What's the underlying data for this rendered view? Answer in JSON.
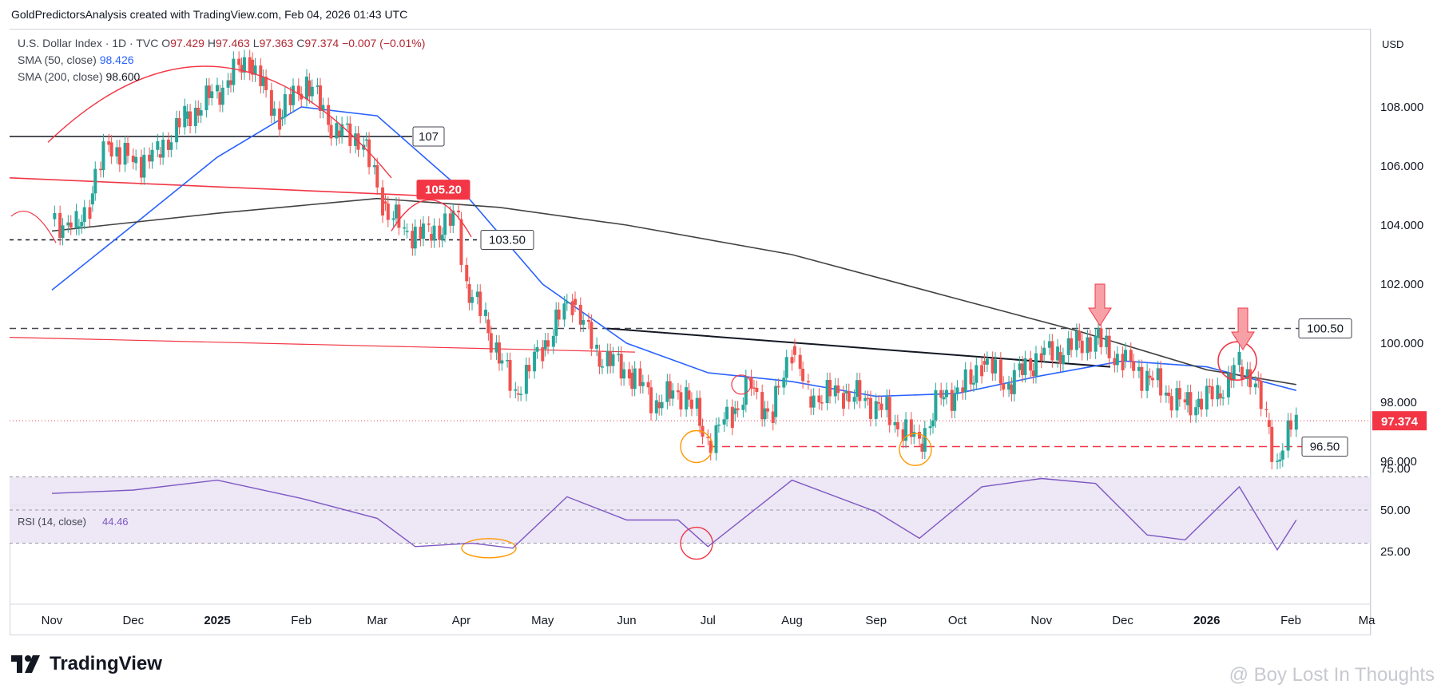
{
  "header": {
    "caption": "GoldPredictorsAnalysis created with TradingView.com, Feb 04, 2026 01:43 UTC"
  },
  "legend": {
    "symbol": "U.S. Dollar Index · 1D · TVC",
    "o_label": "O",
    "o_value": "97.429",
    "h_label": "H",
    "h_value": "97.463",
    "l_label": "L",
    "l_value": "97.363",
    "c_label": "C",
    "c_value": "97.374",
    "change": "−0.007 (−0.01%)",
    "sma50_label": "SMA (50, close)",
    "sma50_value": "98.426",
    "sma200_label": "SMA (200, close)",
    "sma200_value": "98.600"
  },
  "rsi": {
    "label": "RSI (14, close)",
    "value": "44.46",
    "axis_ticks": [
      "75.00",
      "50.00",
      "25.00"
    ]
  },
  "currency": "USD",
  "footer": {
    "brand": "TradingView",
    "watermark": "@ Boy Lost In Thoughts"
  },
  "colors": {
    "up": "#26a69a",
    "down": "#ef5350",
    "sma50": "#2962ff",
    "sma200": "#424242",
    "resistance": "#f23645",
    "rsi": "#7e57c2",
    "rsi_band": "#ede7f6",
    "circle_orange": "#ff9800"
  },
  "chart_data": {
    "type": "line",
    "title": "U.S. Dollar Index",
    "interval": "1D",
    "source": "TVC",
    "ylim": [
      95.2,
      110.3
    ],
    "y_ticks": [
      "108.000",
      "106.000",
      "104.000",
      "102.000",
      "100.000",
      "98.000",
      "96.000"
    ],
    "x_ticks": [
      "Nov",
      "Dec",
      "2025",
      "Feb",
      "Mar",
      "Apr",
      "May",
      "Jun",
      "Jul",
      "Aug",
      "Sep",
      "Oct",
      "Nov",
      "Dec",
      "2026",
      "Feb",
      "Ma"
    ],
    "price_path": [
      {
        "x": "2024-11-01",
        "y": 104.2
      },
      {
        "x": "2024-11-10",
        "y": 103.9
      },
      {
        "x": "2024-11-15",
        "y": 104.7
      },
      {
        "x": "2024-11-22",
        "y": 106.8
      },
      {
        "x": "2024-12-01",
        "y": 106.1
      },
      {
        "x": "2024-12-10",
        "y": 106.4
      },
      {
        "x": "2024-12-20",
        "y": 107.6
      },
      {
        "x": "2025-01-01",
        "y": 108.5
      },
      {
        "x": "2025-01-13",
        "y": 109.6
      },
      {
        "x": "2025-01-24",
        "y": 107.6
      },
      {
        "x": "2025-02-03",
        "y": 108.9
      },
      {
        "x": "2025-02-14",
        "y": 107.2
      },
      {
        "x": "2025-02-24",
        "y": 106.9
      },
      {
        "x": "2025-03-03",
        "y": 104.8
      },
      {
        "x": "2025-03-11",
        "y": 103.8
      },
      {
        "x": "2025-03-20",
        "y": 103.7
      },
      {
        "x": "2025-03-31",
        "y": 104.2
      },
      {
        "x": "2025-04-03",
        "y": 102.0
      },
      {
        "x": "2025-04-10",
        "y": 100.8
      },
      {
        "x": "2025-04-21",
        "y": 98.3
      },
      {
        "x": "2025-05-01",
        "y": 99.8
      },
      {
        "x": "2025-05-12",
        "y": 101.5
      },
      {
        "x": "2025-05-21",
        "y": 99.7
      },
      {
        "x": "2025-06-02",
        "y": 99.0
      },
      {
        "x": "2025-06-12",
        "y": 98.0
      },
      {
        "x": "2025-06-23",
        "y": 98.4
      },
      {
        "x": "2025-07-01",
        "y": 96.7
      },
      {
        "x": "2025-07-10",
        "y": 97.6
      },
      {
        "x": "2025-07-17",
        "y": 98.5
      },
      {
        "x": "2025-07-25",
        "y": 97.5
      },
      {
        "x": "2025-08-01",
        "y": 99.9
      },
      {
        "x": "2025-08-07",
        "y": 98.2
      },
      {
        "x": "2025-08-20",
        "y": 98.3
      },
      {
        "x": "2025-09-01",
        "y": 98.0
      },
      {
        "x": "2025-09-17",
        "y": 96.6
      },
      {
        "x": "2025-09-25",
        "y": 98.1
      },
      {
        "x": "2025-10-06",
        "y": 98.6
      },
      {
        "x": "2025-10-10",
        "y": 99.4
      },
      {
        "x": "2025-10-20",
        "y": 98.6
      },
      {
        "x": "2025-11-01",
        "y": 99.6
      },
      {
        "x": "2025-11-07",
        "y": 99.7
      },
      {
        "x": "2025-11-21",
        "y": 100.2
      },
      {
        "x": "2025-12-01",
        "y": 99.4
      },
      {
        "x": "2025-12-10",
        "y": 98.9
      },
      {
        "x": "2025-12-24",
        "y": 97.9
      },
      {
        "x": "2026-01-05",
        "y": 98.3
      },
      {
        "x": "2026-01-13",
        "y": 99.2
      },
      {
        "x": "2026-01-19",
        "y": 98.8
      },
      {
        "x": "2026-01-23",
        "y": 97.4
      },
      {
        "x": "2026-01-27",
        "y": 96.0
      },
      {
        "x": "2026-02-03",
        "y": 97.4
      }
    ],
    "series": [
      {
        "name": "SMA (50, close)",
        "color": "#2962ff",
        "values": [
          {
            "x": "2024-11-01",
            "y": 101.8
          },
          {
            "x": "2024-12-01",
            "y": 104.0
          },
          {
            "x": "2025-01-01",
            "y": 106.3
          },
          {
            "x": "2025-02-01",
            "y": 108.0
          },
          {
            "x": "2025-03-01",
            "y": 107.7
          },
          {
            "x": "2025-04-01",
            "y": 105.2
          },
          {
            "x": "2025-05-01",
            "y": 102.0
          },
          {
            "x": "2025-06-01",
            "y": 100.0
          },
          {
            "x": "2025-07-01",
            "y": 99.0
          },
          {
            "x": "2025-08-01",
            "y": 98.7
          },
          {
            "x": "2025-09-01",
            "y": 98.2
          },
          {
            "x": "2025-10-01",
            "y": 98.3
          },
          {
            "x": "2025-11-01",
            "y": 98.9
          },
          {
            "x": "2025-12-01",
            "y": 99.4
          },
          {
            "x": "2026-01-01",
            "y": 99.2
          },
          {
            "x": "2026-02-03",
            "y": 98.4
          }
        ]
      },
      {
        "name": "SMA (200, close)",
        "color": "#424242",
        "values": [
          {
            "x": "2024-11-01",
            "y": 103.8
          },
          {
            "x": "2025-01-01",
            "y": 104.4
          },
          {
            "x": "2025-03-01",
            "y": 104.9
          },
          {
            "x": "2025-04-15",
            "y": 104.6
          },
          {
            "x": "2025-06-01",
            "y": 104.0
          },
          {
            "x": "2025-08-01",
            "y": 103.0
          },
          {
            "x": "2025-10-01",
            "y": 101.5
          },
          {
            "x": "2025-11-15",
            "y": 100.4
          },
          {
            "x": "2026-01-01",
            "y": 99.1
          },
          {
            "x": "2026-02-03",
            "y": 98.6
          }
        ]
      }
    ],
    "levels": [
      {
        "label": "107",
        "y": 107.0
      },
      {
        "label": "105.20",
        "y": 105.2
      },
      {
        "label": "103.50",
        "y": 103.5
      },
      {
        "label": "100.50",
        "y": 100.5
      },
      {
        "label": "96.50",
        "y": 96.5
      }
    ],
    "current_price": "97.374",
    "rsi_values": [
      {
        "x": "2024-11-01",
        "y": 60
      },
      {
        "x": "2024-12-01",
        "y": 62
      },
      {
        "x": "2025-01-01",
        "y": 68
      },
      {
        "x": "2025-02-01",
        "y": 57
      },
      {
        "x": "2025-03-01",
        "y": 45
      },
      {
        "x": "2025-03-15",
        "y": 28
      },
      {
        "x": "2025-04-05",
        "y": 30
      },
      {
        "x": "2025-04-20",
        "y": 27
      },
      {
        "x": "2025-05-10",
        "y": 58
      },
      {
        "x": "2025-06-01",
        "y": 44
      },
      {
        "x": "2025-06-20",
        "y": 44
      },
      {
        "x": "2025-07-01",
        "y": 28
      },
      {
        "x": "2025-08-01",
        "y": 68
      },
      {
        "x": "2025-09-01",
        "y": 49
      },
      {
        "x": "2025-09-17",
        "y": 33
      },
      {
        "x": "2025-10-10",
        "y": 64
      },
      {
        "x": "2025-11-01",
        "y": 69
      },
      {
        "x": "2025-11-21",
        "y": 66
      },
      {
        "x": "2025-12-10",
        "y": 35
      },
      {
        "x": "2025-12-24",
        "y": 32
      },
      {
        "x": "2026-01-13",
        "y": 64
      },
      {
        "x": "2026-01-27",
        "y": 26
      },
      {
        "x": "2026-02-03",
        "y": 44
      }
    ]
  }
}
